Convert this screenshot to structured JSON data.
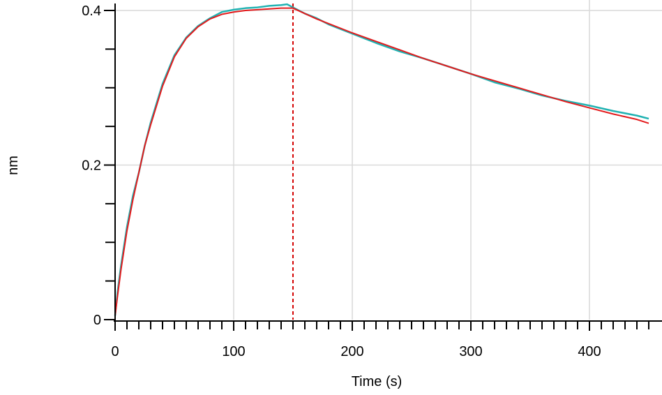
{
  "chart_data": {
    "type": "line",
    "xlabel": "Time (s)",
    "ylabel": "nm",
    "xlim": [
      0,
      450
    ],
    "ylim": [
      0,
      0.4
    ],
    "x_ticks": [
      0,
      100,
      200,
      300,
      400
    ],
    "x_tick_labels": [
      "0",
      "100",
      "200",
      "300",
      "400"
    ],
    "y_ticks": [
      0,
      0.2,
      0.4
    ],
    "y_tick_labels": [
      "0",
      "0.2",
      "0.4"
    ],
    "grid": true,
    "vertical_markers": [
      0,
      150
    ],
    "series": [
      {
        "color": "#20b2b2",
        "x": [
          0,
          2,
          5,
          10,
          15,
          20,
          25,
          30,
          40,
          50,
          60,
          70,
          80,
          90,
          100,
          110,
          120,
          130,
          140,
          145,
          150,
          160,
          170,
          180,
          200,
          220,
          240,
          260,
          280,
          300,
          320,
          340,
          360,
          380,
          400,
          420,
          440,
          450
        ],
        "y": [
          0.005,
          0.035,
          0.07,
          0.12,
          0.16,
          0.19,
          0.225,
          0.255,
          0.305,
          0.342,
          0.365,
          0.38,
          0.39,
          0.398,
          0.401,
          0.403,
          0.404,
          0.406,
          0.407,
          0.408,
          0.404,
          0.396,
          0.39,
          0.382,
          0.37,
          0.358,
          0.347,
          0.338,
          0.328,
          0.318,
          0.307,
          0.299,
          0.29,
          0.283,
          0.277,
          0.27,
          0.264,
          0.26
        ]
      },
      {
        "color": "#e31a1c",
        "x": [
          0,
          2,
          5,
          10,
          15,
          20,
          25,
          30,
          40,
          50,
          60,
          70,
          80,
          90,
          100,
          110,
          120,
          130,
          140,
          150,
          160,
          170,
          180,
          200,
          220,
          240,
          260,
          280,
          300,
          320,
          340,
          360,
          380,
          400,
          420,
          440,
          450
        ],
        "y": [
          0.005,
          0.03,
          0.065,
          0.115,
          0.155,
          0.19,
          0.225,
          0.252,
          0.302,
          0.34,
          0.364,
          0.379,
          0.389,
          0.395,
          0.398,
          0.4,
          0.401,
          0.402,
          0.403,
          0.403,
          0.396,
          0.389,
          0.383,
          0.371,
          0.36,
          0.349,
          0.338,
          0.328,
          0.318,
          0.309,
          0.3,
          0.291,
          0.282,
          0.274,
          0.266,
          0.259,
          0.254
        ]
      }
    ]
  }
}
